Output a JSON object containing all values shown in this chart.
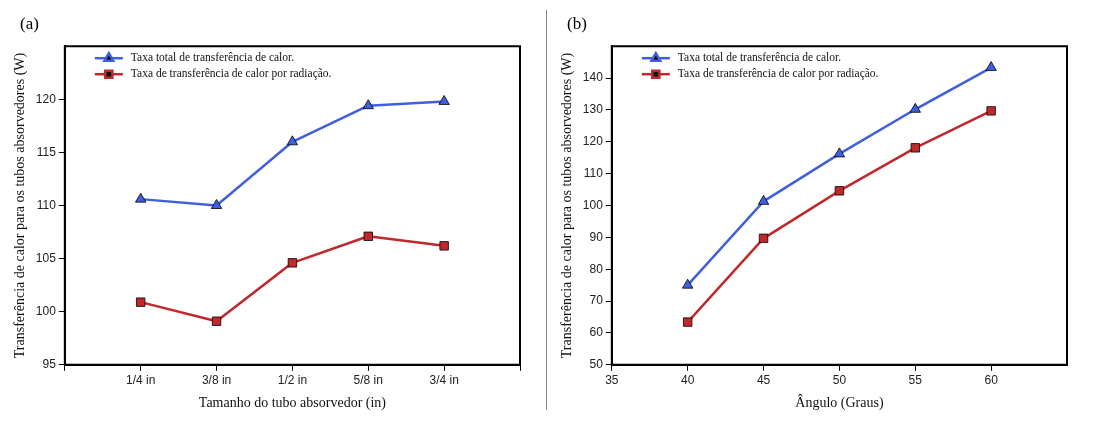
{
  "chart_data": [
    {
      "type": "line",
      "title": "(a)",
      "xlabel": "Tamanho do tubo absorvedor (in)",
      "ylabel": "Transferência de calor para os tubos absorvedores (W)",
      "categories": [
        null,
        "1/4 in",
        "3/8 in",
        "1/2 in",
        "5/8 in",
        "3/4 in",
        null
      ],
      "ylim": [
        95,
        125
      ],
      "yticks": [
        95,
        100,
        105,
        110,
        115,
        120
      ],
      "legend": "top left",
      "grid": false,
      "series": [
        {
          "name": "Taxa total de transferência de calor.",
          "color": "#3f5fe0",
          "marker": "triangle",
          "values": [
            null,
            110.6,
            110.0,
            116.0,
            119.4,
            119.8,
            null
          ]
        },
        {
          "name": "Taxa de transferência de calor por radiação.",
          "color": "#c0282c",
          "marker": "square",
          "values": [
            null,
            100.9,
            99.1,
            104.6,
            107.1,
            106.2,
            null
          ]
        }
      ]
    },
    {
      "type": "line",
      "title": "(b)",
      "xlabel": "Ângulo (Graus)",
      "ylabel": "Transferência de calor para os tubos absorvedores (W)",
      "x": [
        40,
        45,
        50,
        55,
        60
      ],
      "xlim": [
        35,
        65
      ],
      "xticks": [
        35,
        40,
        45,
        50,
        55,
        60
      ],
      "ylim": [
        50,
        150
      ],
      "yticks": [
        50,
        60,
        70,
        80,
        90,
        100,
        110,
        120,
        130,
        140
      ],
      "legend": "top left",
      "grid": false,
      "series": [
        {
          "name": "Taxa total de transferência de calor.",
          "color": "#3f5fe0",
          "marker": "triangle",
          "values": [
            75.0,
            101.3,
            116.2,
            130.2,
            143.3
          ]
        },
        {
          "name": "Taxa de transferência de calor por radiação.",
          "color": "#c0282c",
          "marker": "square",
          "values": [
            63.4,
            89.7,
            104.6,
            118.1,
            129.7
          ]
        }
      ]
    }
  ]
}
